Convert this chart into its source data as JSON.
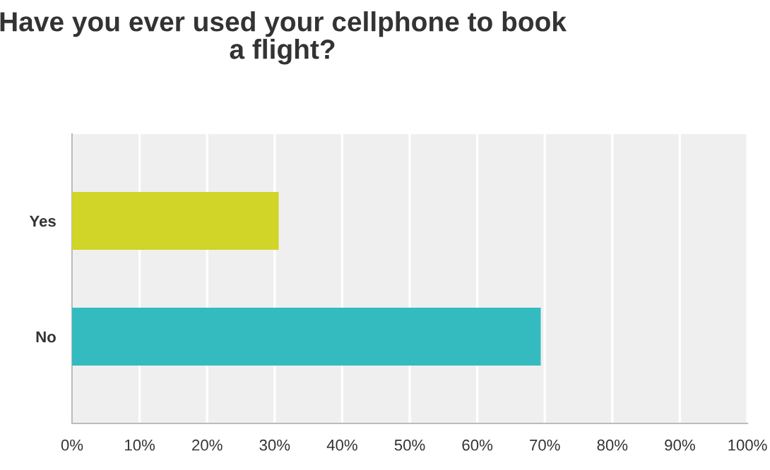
{
  "chart_data": {
    "type": "bar",
    "orientation": "horizontal",
    "title": "Have you ever used your cellphone to book\na flight?",
    "categories": [
      "Yes",
      "No"
    ],
    "values": [
      30.6,
      69.4
    ],
    "colors": [
      "#d0d527",
      "#33bbbf"
    ],
    "xlim": [
      0,
      100
    ],
    "xticks": [
      {
        "value": 0,
        "label": "0%"
      },
      {
        "value": 10,
        "label": "10%"
      },
      {
        "value": 20,
        "label": "20%"
      },
      {
        "value": 30,
        "label": "30%"
      },
      {
        "value": 40,
        "label": "40%"
      },
      {
        "value": 50,
        "label": "50%"
      },
      {
        "value": 60,
        "label": "60%"
      },
      {
        "value": 70,
        "label": "70%"
      },
      {
        "value": 80,
        "label": "80%"
      },
      {
        "value": 90,
        "label": "90%"
      },
      {
        "value": 100,
        "label": "100%"
      }
    ],
    "grid": "x",
    "legend": false
  }
}
